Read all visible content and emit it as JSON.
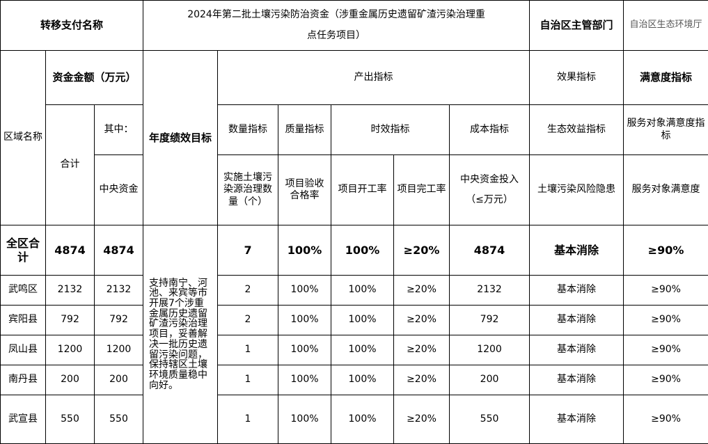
{
  "header": {
    "transfer_label": "转移支付名称",
    "project_title": "2024年第二批土壤污染防治资金（涉重金属历史遗留矿渣污染治理重点任务项目）",
    "dept_label": "自治区主管部门",
    "dept_value": "自治区生态环境厅"
  },
  "columns": {
    "region": "区域名称",
    "funds": "资金金额（万元）",
    "total": "合计",
    "of_which": "其中：",
    "central": "中央资金",
    "goal": "年度绩效目标",
    "output": "产出指标",
    "effect": "效果指标",
    "satisfaction": "满意度指标",
    "quantity": "数量指标",
    "quality": "质量指标",
    "timeliness": "时效指标",
    "cost": "成本指标",
    "eco": "生态效益指标",
    "service": "服务对象满意度指标",
    "q_sub": "实施土壤污染源治理数量（个）",
    "qual_sub": "项目验收合格率",
    "start_sub": "项目开工率",
    "finish_sub": "项目完工率",
    "cost_sub": "中央资金投入（≤万元）",
    "eco_sub": "土壤污染风险隐患",
    "service_sub": "服务对象满意度"
  },
  "goal_text": "支持南宁、河池、来宾等市开展7个涉重金属历史遗留矿渣污染治理项目，妥善解决一批历史遗留污染问题，保持辖区土壤环境质量稳中向好。",
  "rows": [
    {
      "region": "全区合计",
      "total": "4874",
      "central": "4874",
      "count": "7",
      "quality": "100%",
      "start": "100%",
      "finish": "≥20%",
      "cost": "4874",
      "eco": "基本消除",
      "service": "≥90%"
    },
    {
      "region": "武鸣区",
      "total": "2132",
      "central": "2132",
      "count": "2",
      "quality": "100%",
      "start": "100%",
      "finish": "≥20%",
      "cost": "2132",
      "eco": "基本消除",
      "service": "≥90%"
    },
    {
      "region": "宾阳县",
      "total": "792",
      "central": "792",
      "count": "2",
      "quality": "100%",
      "start": "100%",
      "finish": "≥20%",
      "cost": "792",
      "eco": "基本消除",
      "service": "≥90%"
    },
    {
      "region": "凤山县",
      "total": "1200",
      "central": "1200",
      "count": "1",
      "quality": "100%",
      "start": "100%",
      "finish": "≥20%",
      "cost": "1200",
      "eco": "基本消除",
      "service": "≥90%"
    },
    {
      "region": "南丹县",
      "total": "200",
      "central": "200",
      "count": "1",
      "quality": "100%",
      "start": "100%",
      "finish": "≥20%",
      "cost": "200",
      "eco": "基本消除",
      "service": "≥90%"
    },
    {
      "region": "武宣县",
      "total": "550",
      "central": "550",
      "count": "1",
      "quality": "100%",
      "start": "100%",
      "finish": "≥20%",
      "cost": "550",
      "eco": "基本消除",
      "service": "≥90%"
    }
  ]
}
